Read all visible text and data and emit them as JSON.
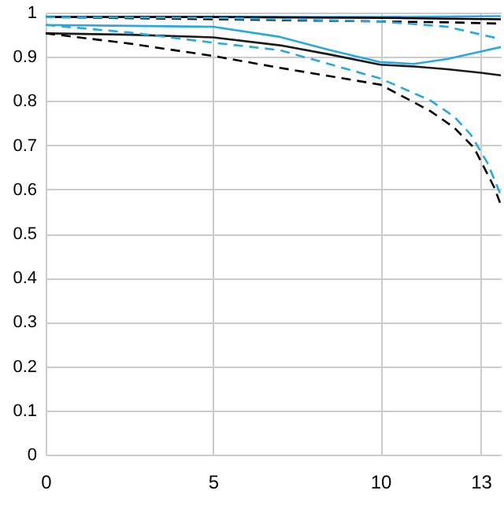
{
  "chart_data": {
    "type": "line",
    "xlim": [
      0,
      13.6
    ],
    "ylim": [
      0,
      1
    ],
    "xticks": [
      0,
      5,
      10,
      13
    ],
    "yticks": [
      0,
      0.1,
      0.2,
      0.3,
      0.4,
      0.5,
      0.6,
      0.7,
      0.8,
      0.9,
      1
    ],
    "grid": true,
    "marker": "none",
    "series": [
      {
        "color": "#29a8e0",
        "line_style": "solid",
        "x": [
          0,
          5,
          10,
          13.6
        ],
        "values": [
          0.99,
          0.99,
          0.99,
          0.992
        ]
      },
      {
        "color": "#000000",
        "line_style": "solid",
        "x": [
          0,
          5,
          10,
          13.6
        ],
        "values": [
          0.99,
          0.99,
          0.988,
          0.985
        ]
      },
      {
        "color": "#000000",
        "line_style": "dashed",
        "x": [
          0,
          5,
          10,
          12,
          13.6
        ],
        "values": [
          0.99,
          0.985,
          0.98,
          0.978,
          0.975
        ]
      },
      {
        "color": "#29a8e0",
        "line_style": "dashed",
        "x": [
          0,
          5,
          10,
          12,
          13.6
        ],
        "values": [
          0.99,
          0.988,
          0.98,
          0.968,
          0.94
        ]
      },
      {
        "color": "#29a8e0",
        "line_style": "solid",
        "x": [
          0,
          2.5,
          5,
          7,
          8.5,
          10,
          11,
          12,
          13,
          13.6
        ],
        "values": [
          0.972,
          0.97,
          0.968,
          0.945,
          0.915,
          0.888,
          0.884,
          0.895,
          0.912,
          0.922
        ]
      },
      {
        "color": "#1a1a1a",
        "line_style": "solid",
        "x": [
          0,
          2.5,
          5,
          7,
          8.5,
          10,
          11,
          12,
          13,
          13.6
        ],
        "values": [
          0.953,
          0.95,
          0.944,
          0.926,
          0.905,
          0.882,
          0.878,
          0.872,
          0.864,
          0.858
        ]
      },
      {
        "color": "#29a8e0",
        "line_style": "dashed",
        "x": [
          0,
          2.5,
          5,
          7,
          10,
          11.5,
          12.2,
          12.7,
          13.2,
          13.6
        ],
        "values": [
          0.972,
          0.955,
          0.932,
          0.915,
          0.851,
          0.801,
          0.765,
          0.724,
          0.66,
          0.587
        ]
      },
      {
        "color": "#000000",
        "line_style": "dashed",
        "x": [
          0,
          2.5,
          5,
          7,
          10,
          11.5,
          12.2,
          12.8,
          13.4,
          13.6
        ],
        "values": [
          0.953,
          0.93,
          0.902,
          0.875,
          0.837,
          0.777,
          0.74,
          0.694,
          0.605,
          0.565
        ]
      }
    ]
  }
}
